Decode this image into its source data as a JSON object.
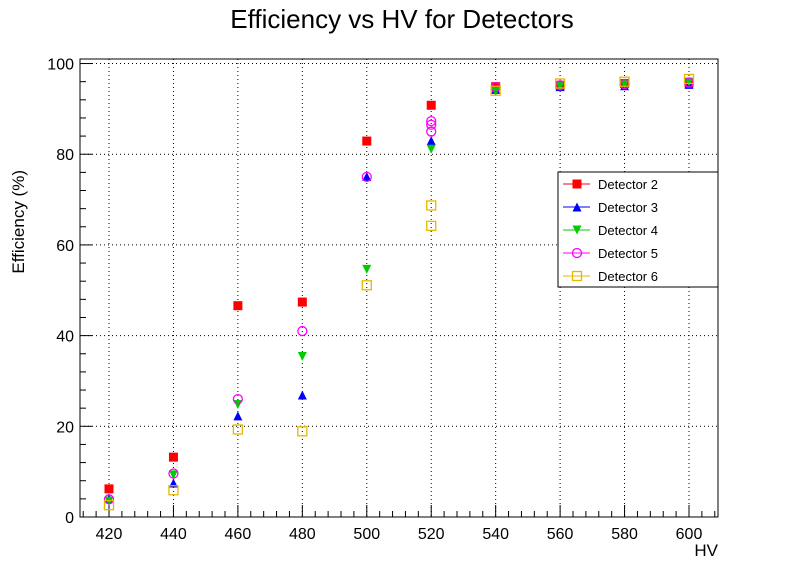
{
  "chart_data": {
    "type": "scatter",
    "title": "Efficiency vs HV for Detectors",
    "xlabel": "HV",
    "ylabel": "Efficiency (%)",
    "xlim": [
      411,
      609
    ],
    "ylim": [
      0,
      101
    ],
    "xticks": [
      420,
      440,
      460,
      480,
      500,
      520,
      540,
      560,
      580,
      600
    ],
    "yticks": [
      0,
      20,
      40,
      60,
      80,
      100
    ],
    "grid": true,
    "legend_position": "right",
    "series": [
      {
        "name": "Detector 2",
        "color": "#ff0000",
        "marker": "filled-square",
        "points": [
          [
            420,
            6.2
          ],
          [
            440,
            13.2
          ],
          [
            460,
            46.6
          ],
          [
            480,
            47.4
          ],
          [
            500,
            82.9
          ],
          [
            520,
            90.8
          ],
          [
            540,
            94.9
          ],
          [
            560,
            95.2
          ],
          [
            580,
            95.6
          ],
          [
            600,
            95.7
          ]
        ]
      },
      {
        "name": "Detector 3",
        "color": "#0000ff",
        "marker": "filled-triangle-up",
        "points": [
          [
            420,
            4.1
          ],
          [
            440,
            7.5
          ],
          [
            460,
            22.3
          ],
          [
            480,
            26.9
          ],
          [
            500,
            75.1
          ],
          [
            520,
            83.0
          ],
          [
            540,
            94.3
          ],
          [
            560,
            94.9
          ],
          [
            580,
            95.1
          ],
          [
            600,
            95.4
          ]
        ]
      },
      {
        "name": "Detector 4",
        "color": "#00cc00",
        "marker": "filled-triangle-down",
        "points": [
          [
            420,
            3.5
          ],
          [
            440,
            9.3
          ],
          [
            460,
            24.8
          ],
          [
            480,
            35.4
          ],
          [
            500,
            54.6
          ],
          [
            520,
            81.1
          ],
          [
            540,
            93.8
          ],
          [
            560,
            95.0
          ],
          [
            580,
            95.4
          ],
          [
            600,
            95.9
          ]
        ]
      },
      {
        "name": "Detector 5",
        "color": "#ff00ff",
        "marker": "open-circle",
        "points": [
          [
            420,
            3.9
          ],
          [
            440,
            9.6
          ],
          [
            460,
            26.0
          ],
          [
            480,
            41.0
          ],
          [
            500,
            75.0
          ],
          [
            520,
            85.0
          ],
          [
            520,
            86.5
          ],
          [
            520,
            87.3
          ],
          [
            540,
            94.8
          ],
          [
            560,
            95.2
          ],
          [
            580,
            95.5
          ],
          [
            600,
            95.8
          ]
        ]
      },
      {
        "name": "Detector 6",
        "color": "#e6b800",
        "marker": "open-square",
        "points": [
          [
            420,
            2.6
          ],
          [
            440,
            5.9
          ],
          [
            460,
            19.3
          ],
          [
            480,
            18.9
          ],
          [
            500,
            51.1
          ],
          [
            520,
            64.2
          ],
          [
            520,
            68.7
          ],
          [
            540,
            94.0
          ],
          [
            560,
            95.6
          ],
          [
            580,
            96.0
          ],
          [
            600,
            96.6
          ]
        ]
      }
    ]
  }
}
